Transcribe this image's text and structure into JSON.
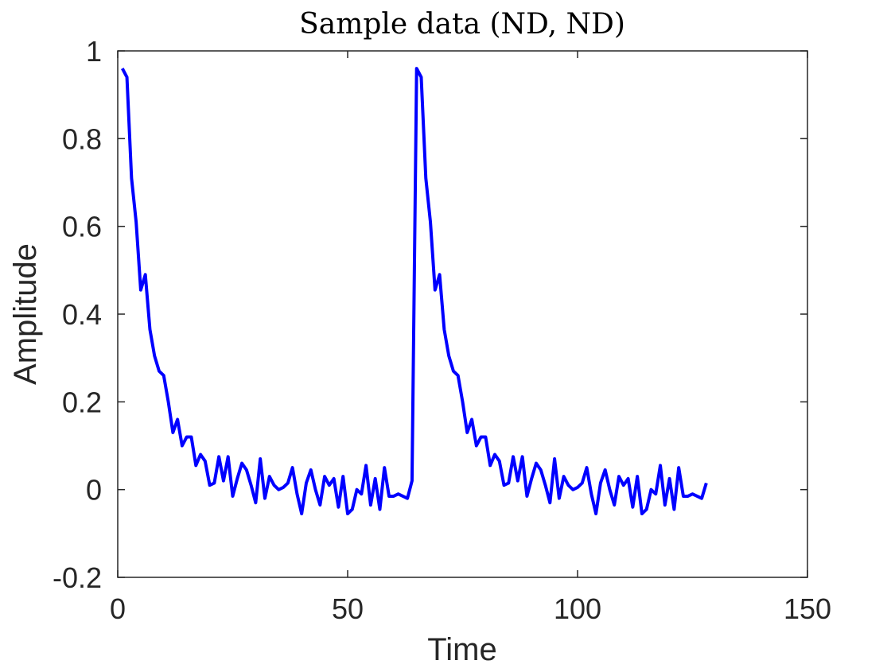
{
  "chart_data": {
    "type": "line",
    "title": "Sample data (ND, ND)",
    "xlabel": "Time",
    "ylabel": "Amplitude",
    "xlim": [
      0,
      150
    ],
    "ylim": [
      -0.2,
      1
    ],
    "xticks": [
      0,
      50,
      100,
      150
    ],
    "xtick_labels": [
      "0",
      "50",
      "100",
      "150"
    ],
    "yticks": [
      -0.2,
      0,
      0.2,
      0.4,
      0.6,
      0.8,
      1
    ],
    "ytick_labels": [
      "-0.2",
      "0",
      "0.2",
      "0.4",
      "0.6",
      "0.8",
      "1"
    ],
    "grid": false,
    "box": true,
    "series": [
      {
        "color": "#0000ff",
        "x": [
          1,
          2,
          3,
          4,
          5,
          6,
          7,
          8,
          9,
          10,
          11,
          12,
          13,
          14,
          15,
          16,
          17,
          18,
          19,
          20,
          21,
          22,
          23,
          24,
          25,
          26,
          27,
          28,
          29,
          30,
          31,
          32,
          33,
          34,
          35,
          36,
          37,
          38,
          39,
          40,
          41,
          42,
          43,
          44,
          45,
          46,
          47,
          48,
          49,
          50,
          51,
          52,
          53,
          54,
          55,
          56,
          57,
          58,
          59,
          60,
          61,
          62,
          63,
          64,
          65,
          66,
          67,
          68,
          69,
          70,
          71,
          72,
          73,
          74,
          75,
          76,
          77,
          78,
          79,
          80,
          81,
          82,
          83,
          84,
          85,
          86,
          87,
          88,
          89,
          90,
          91,
          92,
          93,
          94,
          95,
          96,
          97,
          98,
          99,
          100,
          101,
          102,
          103,
          104,
          105,
          106,
          107,
          108,
          109,
          110,
          111,
          112,
          113,
          114,
          115,
          116,
          117,
          118,
          119,
          120,
          121,
          122,
          123,
          124,
          125,
          126,
          127,
          128
        ],
        "y": [
          0.96,
          0.94,
          0.71,
          0.61,
          0.455,
          0.49,
          0.365,
          0.305,
          0.27,
          0.26,
          0.2,
          0.13,
          0.16,
          0.1,
          0.12,
          0.12,
          0.055,
          0.08,
          0.065,
          0.01,
          0.015,
          0.075,
          0.02,
          0.075,
          -0.015,
          0.025,
          0.06,
          0.045,
          0.01,
          -0.03,
          0.07,
          -0.02,
          0.03,
          0.01,
          0.0,
          0.005,
          0.015,
          0.05,
          -0.01,
          -0.055,
          0.015,
          0.045,
          0.0,
          -0.035,
          0.03,
          0.01,
          0.025,
          -0.04,
          0.03,
          -0.055,
          -0.045,
          0.0,
          -0.01,
          0.055,
          -0.035,
          0.025,
          -0.045,
          0.05,
          -0.015,
          -0.015,
          -0.01,
          -0.015,
          -0.02,
          0.02,
          0.96,
          0.94,
          0.71,
          0.61,
          0.455,
          0.49,
          0.365,
          0.305,
          0.27,
          0.26,
          0.2,
          0.13,
          0.16,
          0.1,
          0.12,
          0.12,
          0.055,
          0.08,
          0.065,
          0.01,
          0.015,
          0.075,
          0.02,
          0.075,
          -0.015,
          0.025,
          0.06,
          0.045,
          0.01,
          -0.03,
          0.07,
          -0.02,
          0.03,
          0.01,
          0.0,
          0.005,
          0.015,
          0.05,
          -0.01,
          -0.055,
          0.015,
          0.045,
          0.0,
          -0.035,
          0.03,
          0.01,
          0.025,
          -0.04,
          0.03,
          -0.055,
          -0.045,
          0.0,
          -0.01,
          0.055,
          -0.035,
          0.025,
          -0.045,
          0.05,
          -0.015,
          -0.015,
          -0.01,
          -0.015,
          -0.02,
          0.015
        ]
      }
    ]
  }
}
